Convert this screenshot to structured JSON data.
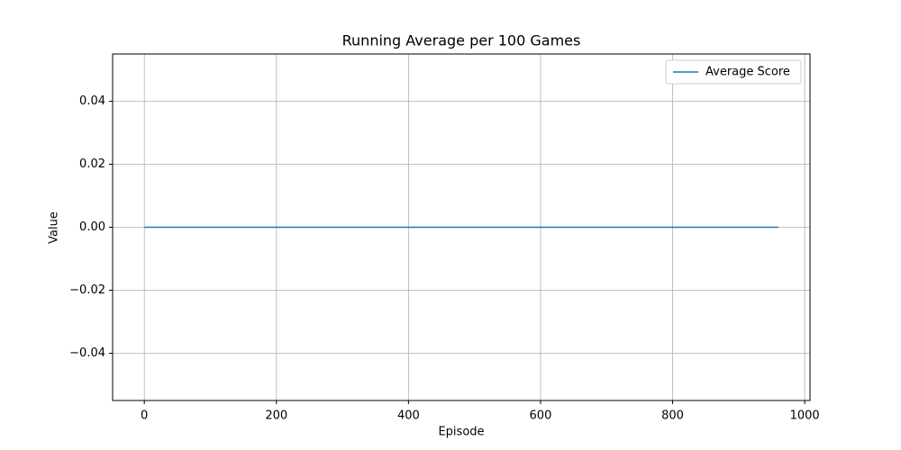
{
  "chart_data": {
    "type": "line",
    "title": "Running Average per 100 Games",
    "x_label": "Episode",
    "y_label": "Value",
    "x": [
      0,
      960
    ],
    "series": [
      {
        "name": "Average Score",
        "color": "#1f77b4",
        "values": [
          0,
          0
        ]
      }
    ],
    "xlim": [
      -48,
      1008
    ],
    "xticks": [
      0,
      200,
      400,
      600,
      800,
      1000
    ],
    "ylim": [
      -0.055,
      0.055
    ],
    "yticks": [
      {
        "value": -0.04,
        "label": "−0.04"
      },
      {
        "value": -0.02,
        "label": "−0.02"
      },
      {
        "value": 0,
        "label": "0.00"
      },
      {
        "value": 0.02,
        "label": "0.02"
      },
      {
        "value": 0.04,
        "label": "0.04"
      }
    ],
    "grid": true,
    "legend": "upper right"
  }
}
